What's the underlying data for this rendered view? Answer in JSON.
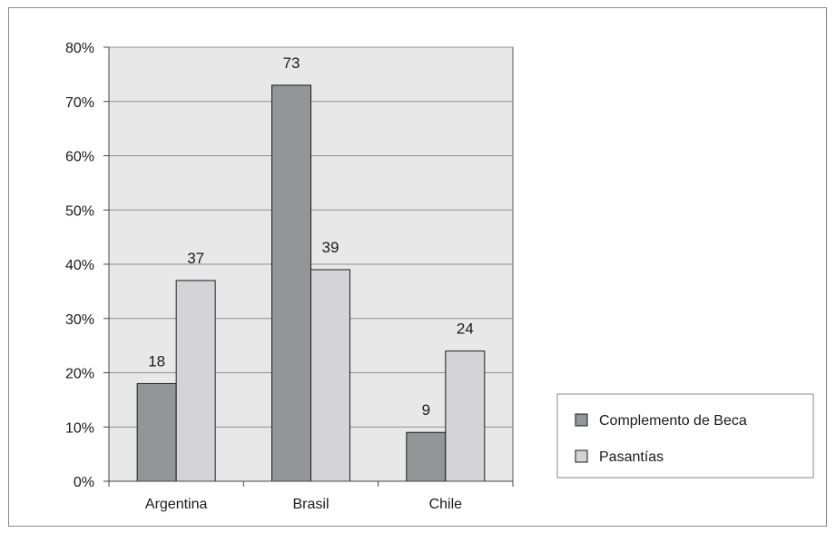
{
  "chart_data": {
    "type": "bar",
    "title": "",
    "xlabel": "",
    "ylabel": "",
    "categories": [
      "Argentina",
      "Brasil",
      "Chile"
    ],
    "series": [
      {
        "name": "Complemento de Beca",
        "values": [
          18,
          73,
          9
        ],
        "color": "#939598"
      },
      {
        "name": "Pasantías",
        "values": [
          37,
          39,
          24
        ],
        "color": "#d4d4d6"
      }
    ],
    "data_labels": [
      [
        "18",
        "73",
        "9"
      ],
      [
        "37",
        "39",
        "24"
      ]
    ],
    "ylim": [
      0,
      80
    ],
    "yticks": [
      0,
      10,
      20,
      30,
      40,
      50,
      60,
      70,
      80
    ],
    "ytick_labels": [
      "0%",
      "10%",
      "20%",
      "30%",
      "40%",
      "50%",
      "60%",
      "70%",
      "80%"
    ],
    "grid": true,
    "plot_background": "#e8e8e8",
    "legend_position": "right-bottom"
  }
}
